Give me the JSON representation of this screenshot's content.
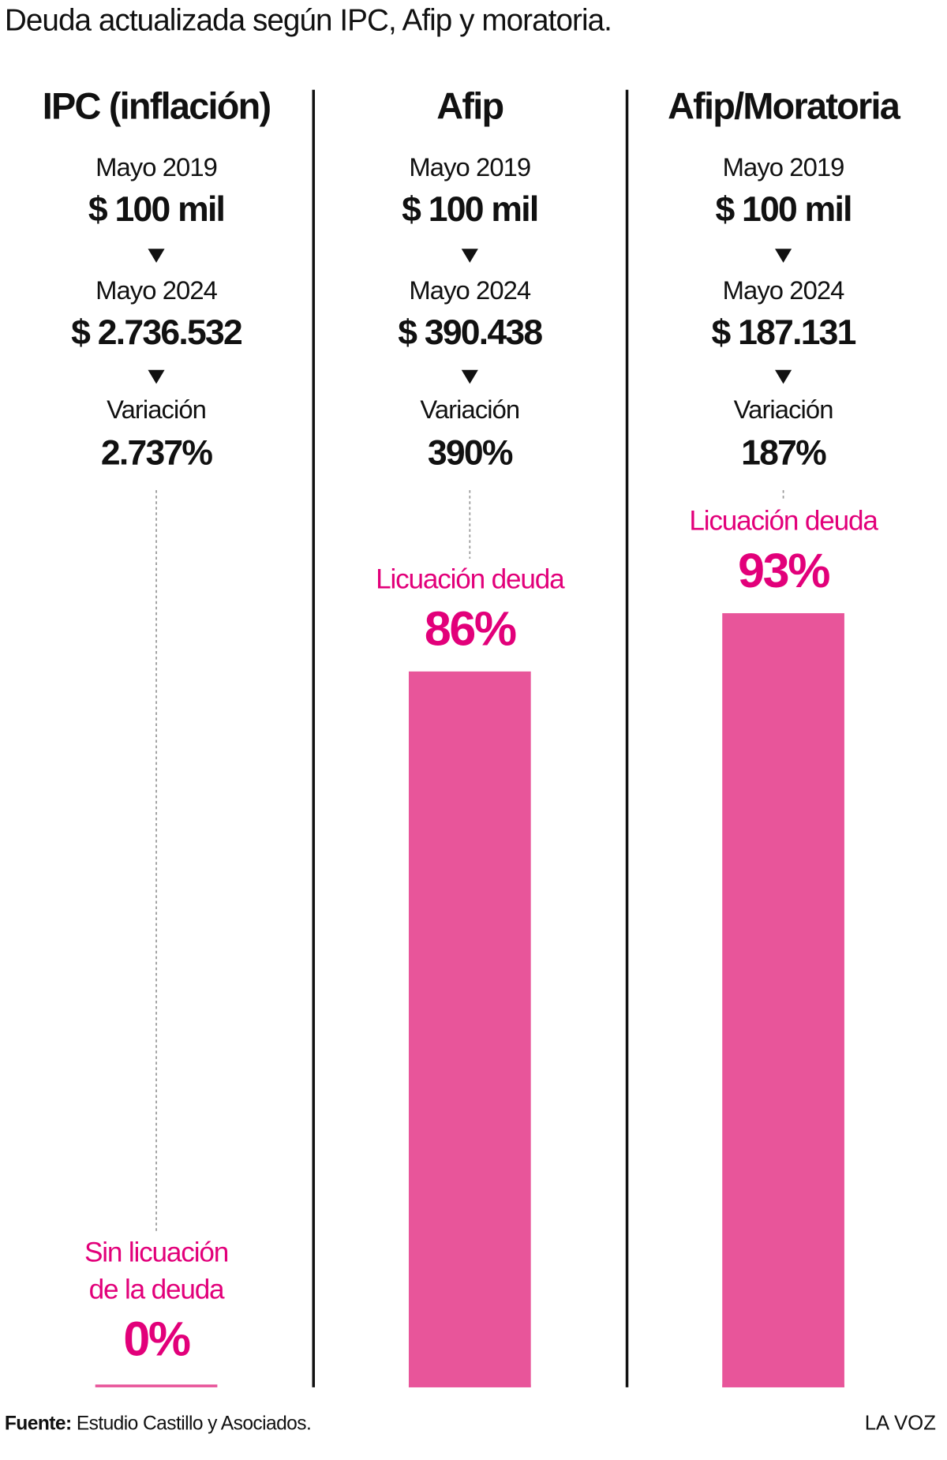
{
  "chart_data": {
    "type": "bar",
    "title": "Deuda actualizada según IPC, Afip y moratoria.",
    "categories": [
      "IPC (inflación)",
      "Afip",
      "Afip/Moratoria"
    ],
    "details": [
      {
        "start_date": "Mayo 2019",
        "start_amount": "$ 100 mil",
        "end_date": "Mayo 2024",
        "end_amount": "$ 2.736.532",
        "variation_label": "Variación",
        "variation": "2.737%"
      },
      {
        "start_date": "Mayo 2019",
        "start_amount": "$ 100 mil",
        "end_date": "Mayo 2024",
        "end_amount": "$ 390.438",
        "variation_label": "Variación",
        "variation": "390%"
      },
      {
        "start_date": "Mayo 2019",
        "start_amount": "$ 100 mil",
        "end_date": "Mayo 2024",
        "end_amount": "$ 187.131",
        "variation_label": "Variación",
        "variation": "187%"
      }
    ],
    "bar_labels": [
      [
        "Sin licuación",
        "de la deuda"
      ],
      [
        "Licuación deuda"
      ],
      [
        "Licuación deuda"
      ]
    ],
    "values": [
      0,
      86,
      93
    ],
    "value_labels": [
      "0%",
      "86%",
      "93%"
    ],
    "ylim": [
      0,
      100
    ],
    "color": "#e8559a",
    "label_color": "#e2007a"
  },
  "footer": {
    "source_label": "Fuente:",
    "source": "Estudio Castillo y Asociados.",
    "brand": "LA VOZ"
  }
}
